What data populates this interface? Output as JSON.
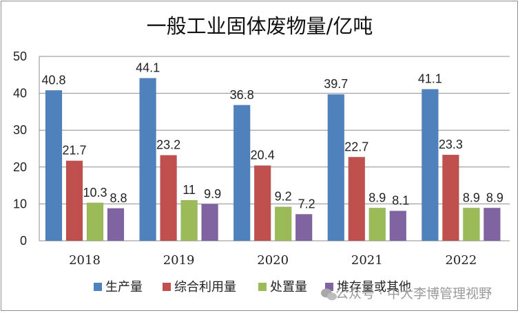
{
  "chart_data": {
    "type": "bar",
    "title": "一般工业固体废物量/亿吨",
    "categories": [
      "2018",
      "2019",
      "2020",
      "2021",
      "2022"
    ],
    "series": [
      {
        "name": "生产量",
        "color": "#4f81bd",
        "values": [
          40.8,
          44.1,
          36.8,
          39.7,
          41.1
        ],
        "labels": [
          "40.8",
          "44.1",
          "36.8",
          "39.7",
          "41.1"
        ]
      },
      {
        "name": "综合利用量",
        "color": "#c0504d",
        "values": [
          21.7,
          23.2,
          20.4,
          22.7,
          23.3
        ],
        "labels": [
          "21.7",
          "23.2",
          "20.4",
          "22.7",
          "23.3"
        ]
      },
      {
        "name": "处置量",
        "color": "#9bbb59",
        "values": [
          10.3,
          11,
          9.2,
          8.9,
          8.9
        ],
        "labels": [
          "10.3",
          "11",
          "9.2",
          "8.9",
          "8.9"
        ]
      },
      {
        "name": "堆存量或其他",
        "color": "#8064a2",
        "values": [
          8.8,
          9.9,
          7.2,
          8.1,
          8.9
        ],
        "labels": [
          "8.8",
          "9.9",
          "7.2",
          "8.1",
          "8.9"
        ]
      }
    ],
    "ylim": [
      0,
      50
    ],
    "yticks": [
      0,
      10,
      20,
      30,
      40,
      50
    ],
    "grid": true,
    "legend": "bottom",
    "xlabel": "",
    "ylabel": ""
  },
  "watermark": {
    "text": "公众号 · 中大李博管理视野",
    "icon": "wechat-icon"
  }
}
